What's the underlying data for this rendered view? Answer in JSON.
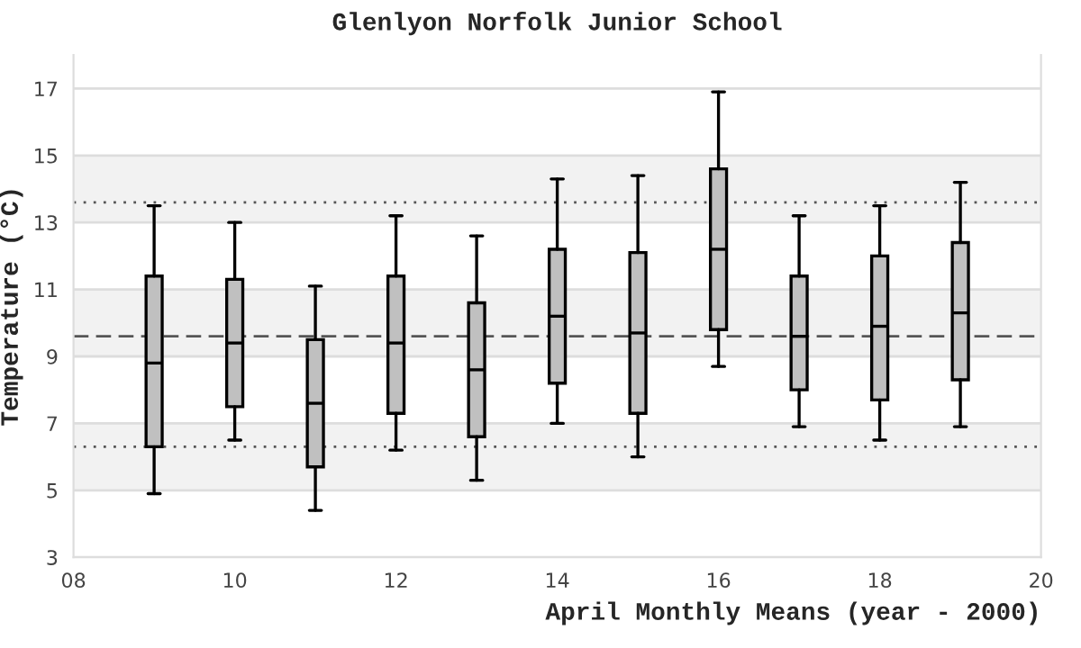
{
  "chart_data": {
    "type": "box",
    "title": "Glenlyon Norfolk Junior School",
    "xlabel": "April Monthly Means (year - 2000)",
    "ylabel": "Temperature (°C)",
    "x": [
      9,
      10,
      11,
      12,
      13,
      14,
      15,
      16,
      17,
      18,
      19
    ],
    "series": [
      {
        "color": "#c0c0c0",
        "boxes": [
          {
            "low": 4.9,
            "q1": 6.3,
            "median": 8.8,
            "q3": 11.4,
            "high": 13.5
          },
          {
            "low": 6.5,
            "q1": 7.5,
            "median": 9.4,
            "q3": 11.3,
            "high": 13.0
          },
          {
            "low": 4.4,
            "q1": 5.7,
            "median": 7.6,
            "q3": 9.5,
            "high": 11.1
          },
          {
            "low": 6.2,
            "q1": 7.3,
            "median": 9.4,
            "q3": 11.4,
            "high": 13.2
          },
          {
            "low": 5.3,
            "q1": 6.6,
            "median": 8.6,
            "q3": 10.6,
            "high": 12.6
          },
          {
            "low": 7.0,
            "q1": 8.2,
            "median": 10.2,
            "q3": 12.2,
            "high": 14.3
          },
          {
            "low": 6.0,
            "q1": 7.3,
            "median": 9.7,
            "q3": 12.1,
            "high": 14.4
          },
          {
            "low": 8.7,
            "q1": 9.8,
            "median": 12.2,
            "q3": 14.6,
            "high": 16.9
          },
          {
            "low": 6.9,
            "q1": 8.0,
            "median": 9.6,
            "q3": 11.4,
            "high": 13.2
          },
          {
            "low": 6.5,
            "q1": 7.7,
            "median": 9.9,
            "q3": 12.0,
            "high": 13.5
          },
          {
            "low": 6.9,
            "q1": 8.3,
            "median": 10.3,
            "q3": 12.4,
            "high": 14.2
          }
        ]
      }
    ],
    "xlim": [
      8,
      20
    ],
    "xticks": [
      {
        "value": 8,
        "label": "08"
      },
      10,
      12,
      14,
      16,
      18,
      20
    ],
    "ylim": [
      3,
      18
    ],
    "yticks": [
      3,
      5,
      7,
      9,
      11,
      13,
      15,
      17
    ],
    "grid": "y",
    "bands": [
      {
        "axis": "y",
        "from": 5,
        "to": 7,
        "color": "#f2f2f2"
      },
      {
        "axis": "y",
        "from": 9,
        "to": 11,
        "color": "#f2f2f2"
      },
      {
        "axis": "y",
        "from": 13,
        "to": 15,
        "color": "#f2f2f2"
      }
    ],
    "ref_lines": [
      {
        "axis": "y",
        "value": 13.6,
        "line_style": "dotted",
        "color": "#555555"
      },
      {
        "axis": "y",
        "value": 9.6,
        "line_style": "dashed",
        "color": "#555555"
      },
      {
        "axis": "y",
        "value": 6.3,
        "line_style": "dotted",
        "color": "#555555"
      }
    ]
  }
}
